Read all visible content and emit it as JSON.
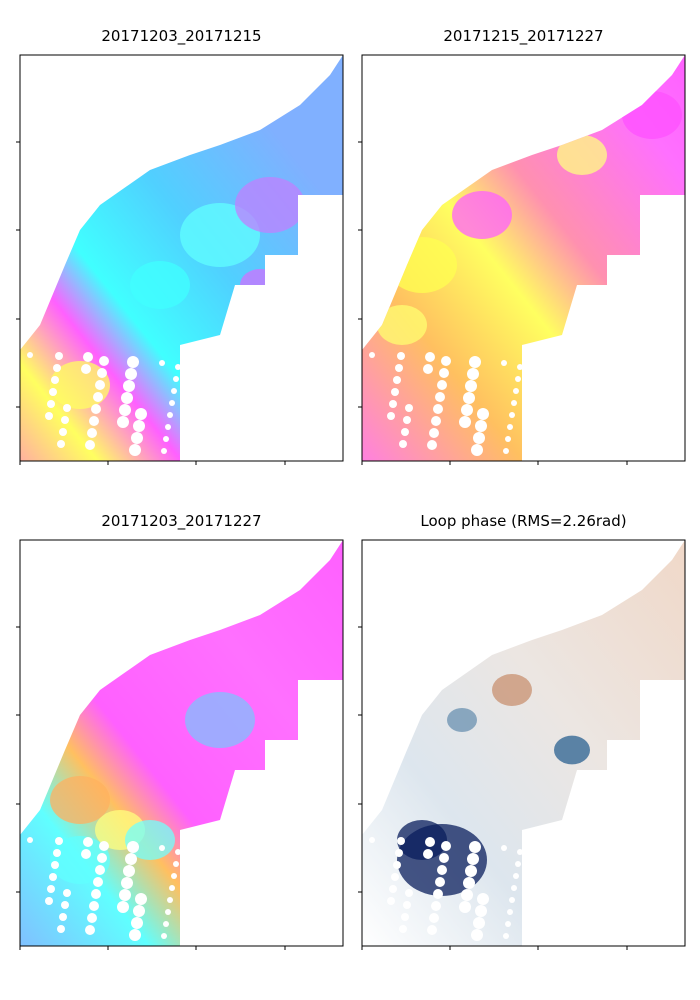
{
  "panels": [
    {
      "title": "20171203_20171215"
    },
    {
      "title": "20171215_20171227"
    },
    {
      "title": "20171203_20171227"
    },
    {
      "title": "Loop phase (RMS=2.26rad)"
    }
  ]
}
